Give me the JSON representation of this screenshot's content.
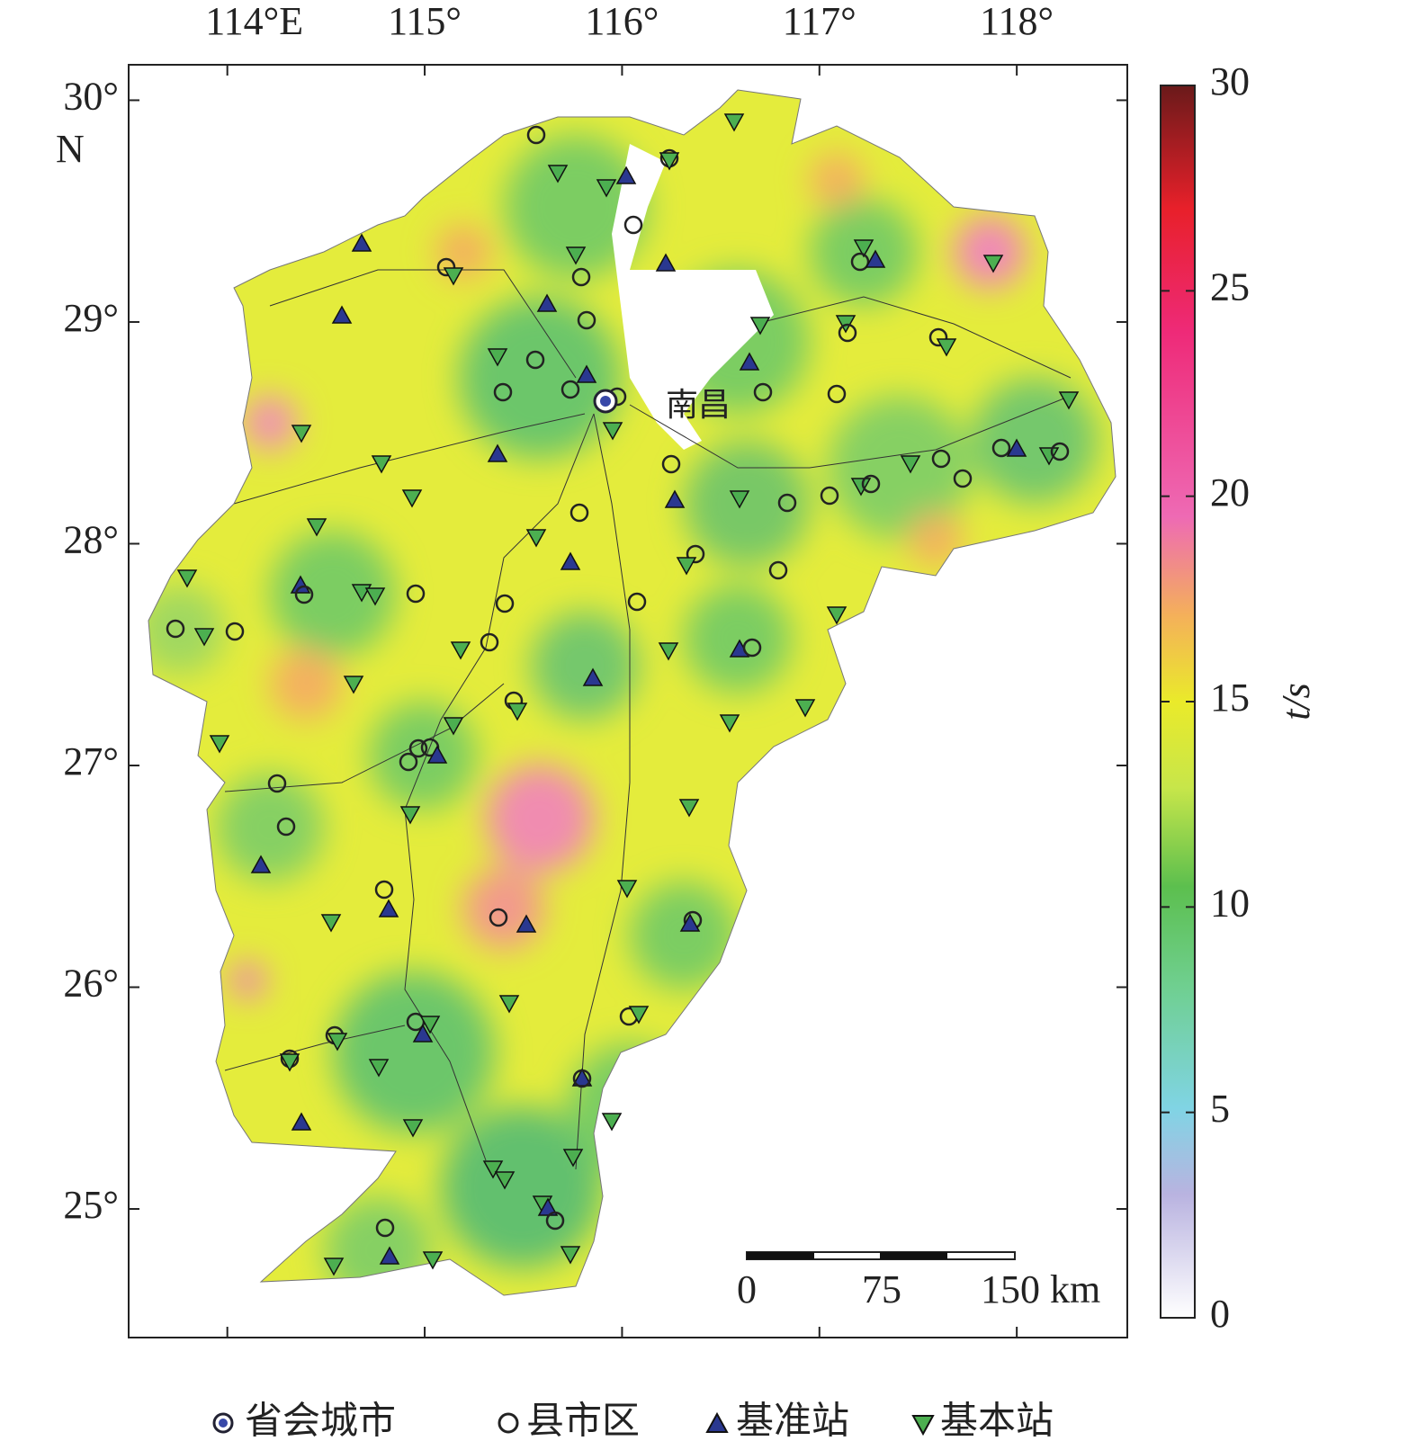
{
  "map": {
    "xlim": [
      113.5,
      118.56
    ],
    "ylim": [
      24.42,
      30.16
    ],
    "lon_ticks": [
      {
        "value": 114,
        "label": "114°E"
      },
      {
        "value": 115,
        "label": "115°"
      },
      {
        "value": 116,
        "label": "116°"
      },
      {
        "value": 117,
        "label": "117°"
      },
      {
        "value": 118,
        "label": "118°"
      }
    ],
    "lat_ticks": [
      {
        "value": 30,
        "label": "30°"
      },
      {
        "value": 29,
        "label": "29°"
      },
      {
        "value": 28,
        "label": "28°"
      },
      {
        "value": 27,
        "label": "27°"
      },
      {
        "value": 26,
        "label": "26°"
      },
      {
        "value": 25,
        "label": "25°"
      }
    ],
    "lat_unit": "N",
    "city_label": "南昌",
    "scale_bar": {
      "labels": [
        "0",
        "75",
        "150 km"
      ]
    },
    "colorbar": {
      "label": "t/s",
      "lim": [
        0,
        30
      ],
      "ticks": [
        0,
        5,
        10,
        15,
        20,
        25,
        30
      ]
    },
    "legend": [
      "省会城市",
      "县市区",
      "基准站",
      "基本站"
    ]
  }
}
